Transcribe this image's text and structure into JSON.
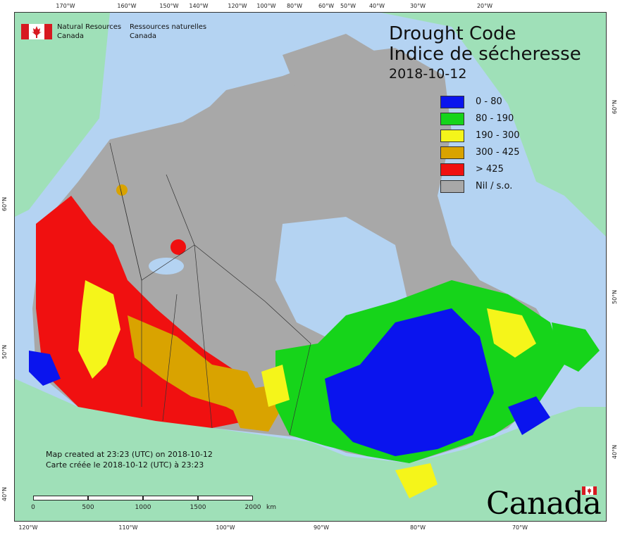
{
  "agency": {
    "name_en_line1": "Natural Resources",
    "name_en_line2": "Canada",
    "name_fr_line1": "Ressources naturelles",
    "name_fr_line2": "Canada"
  },
  "map": {
    "title_en": "Drought Code",
    "title_fr": "Indice de sécheresse",
    "date": "2018-10-12",
    "credit_en": "Map created at 23:23 (UTC) on 2018-10-12",
    "credit_fr": "Carte créée le 2018-10-12 (UTC) à 23:23",
    "wordmark": "Canada",
    "colors": {
      "ocean": "#b4d3f2",
      "foreign_land": "#9fe0b8",
      "no_data": "#a8a8a8"
    }
  },
  "legend": [
    {
      "label": "0 - 80",
      "color": "#0a14ee"
    },
    {
      "label": "80 - 190",
      "color": "#16d41a"
    },
    {
      "label": "190 - 300",
      "color": "#f5f51a"
    },
    {
      "label": "300 - 425",
      "color": "#d9a300"
    },
    {
      "label": "> 425",
      "color": "#f01010"
    },
    {
      "label": "Nil / s.o.",
      "color": "#a8a8a8"
    }
  ],
  "scale_bar": {
    "labels": [
      "0",
      "500",
      "1000",
      "1500",
      "2000"
    ],
    "unit": "km"
  },
  "graticule": {
    "top": [
      "170°W",
      "160°W",
      "150°W",
      "140°W",
      "120°W",
      "100°W",
      "80°W",
      "60°W",
      "50°W",
      "40°W",
      "30°W",
      "20°W"
    ],
    "bottom": [
      "120°W",
      "110°W",
      "100°W",
      "90°W",
      "80°W",
      "70°W"
    ],
    "left": [
      "60°N",
      "50°N",
      "40°N"
    ],
    "right": [
      "60°N",
      "50°N",
      "40°N"
    ]
  }
}
